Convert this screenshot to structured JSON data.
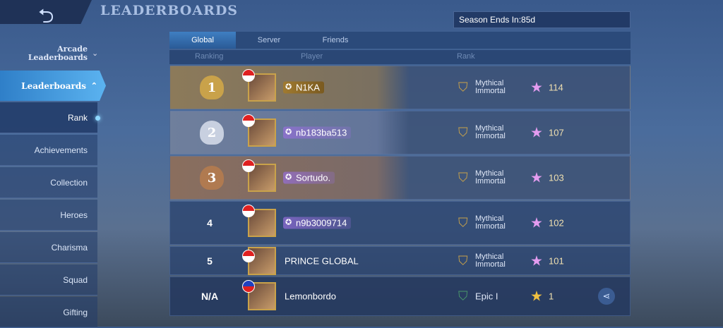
{
  "header": {
    "title": "LEADERBOARDS",
    "back_icon": "back-arrow-icon",
    "season": "Season Ends In:85d"
  },
  "sidebar": {
    "arcade": "Arcade Leaderboards",
    "leaderboards": "Leaderboards",
    "items": [
      "Rank",
      "Achievements",
      "Collection",
      "Heroes",
      "Charisma",
      "Squad",
      "Gifting"
    ]
  },
  "tabs": [
    "Global",
    "Server",
    "Friends"
  ],
  "columns": [
    "Ranking",
    "Player",
    "Rank"
  ],
  "rows": [
    {
      "rank": "1",
      "player": "N1KA",
      "tier": "Mythical Immortal",
      "points": "114"
    },
    {
      "rank": "2",
      "player": "nb183ba513",
      "tier": "Mythical Immortal",
      "points": "107"
    },
    {
      "rank": "3",
      "player": "Sortudo.",
      "tier": "Mythical Immortal",
      "points": "103"
    },
    {
      "rank": "4",
      "player": "n9b3009714",
      "tier": "Mythical Immortal",
      "points": "102"
    },
    {
      "rank": "5",
      "player": "PRINCE GLOBAL",
      "tier": "Mythical Immortal",
      "points": "101"
    }
  ],
  "me": {
    "rank": "N/A",
    "player": "Lemonbordo",
    "tier": "Epic I",
    "points": "1"
  },
  "colors": {
    "gold": "#c9a24a",
    "silver": "#c8d0e0",
    "bronze": "#b07a50",
    "accent": "#5bb3f0"
  }
}
